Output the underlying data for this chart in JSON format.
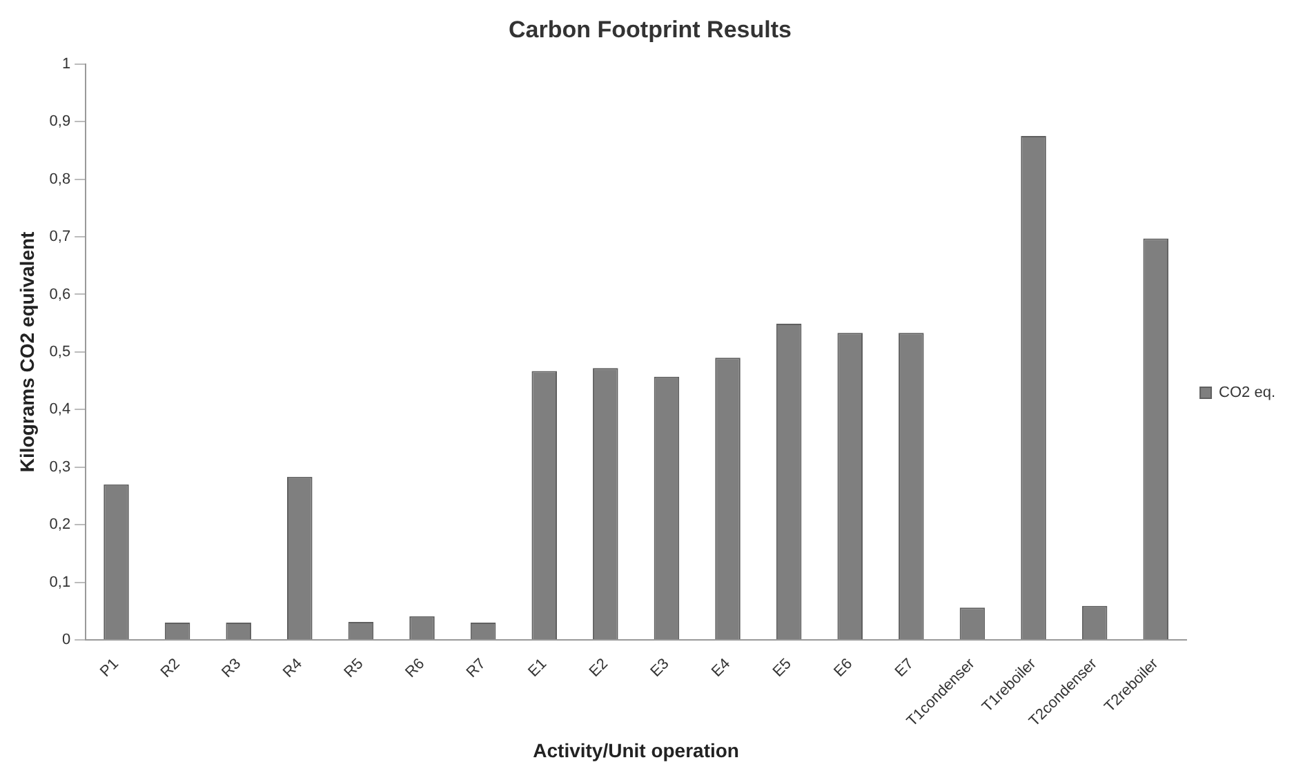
{
  "chart_data": {
    "type": "bar",
    "title": "Carbon Footprint Results",
    "xlabel": "Activity/Unit operation",
    "ylabel": "Kilograms CO2 equivalent",
    "categories": [
      "P1",
      "R2",
      "R3",
      "R4",
      "R5",
      "R6",
      "R7",
      "E1",
      "E2",
      "E3",
      "E4",
      "E5",
      "E6",
      "E7",
      "T1condenser",
      "T1reboiler",
      "T2condenser",
      "T2reboiler"
    ],
    "series": [
      {
        "name": "CO2 eq.",
        "color": "#7f7f7f",
        "values": [
          0.27,
          0.03,
          0.03,
          0.283,
          0.031,
          0.041,
          0.03,
          0.467,
          0.472,
          0.457,
          0.49,
          0.549,
          0.533,
          0.533,
          0.056,
          0.875,
          0.059,
          0.697
        ]
      }
    ],
    "ylim": [
      0,
      1
    ],
    "yticks": [
      0,
      {
        "value": 0.1,
        "label": "0,1"
      },
      {
        "value": 0.2,
        "label": "0,2"
      },
      {
        "value": 0.3,
        "label": "0,3"
      },
      {
        "value": 0.4,
        "label": "0,4"
      },
      {
        "value": 0.5,
        "label": "0,5"
      },
      {
        "value": 0.6,
        "label": "0,6"
      },
      {
        "value": 0.7,
        "label": "0,7"
      },
      {
        "value": 0.8,
        "label": "0,8"
      },
      {
        "value": 0.9,
        "label": "0,9"
      },
      1
    ],
    "grid": false,
    "legend": "right"
  }
}
